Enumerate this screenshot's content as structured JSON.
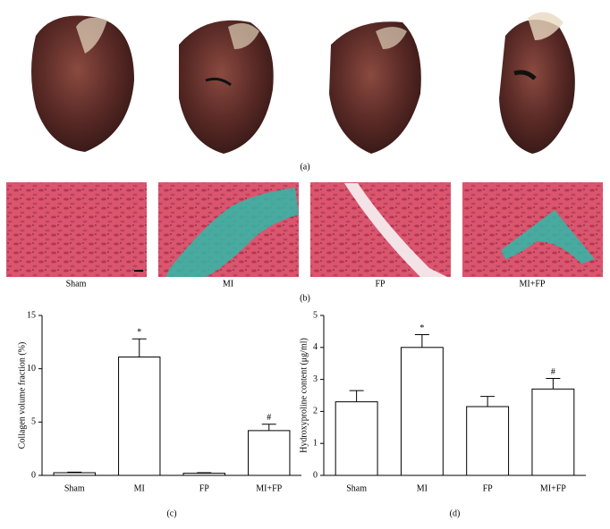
{
  "panel_a": {
    "caption": "(a)"
  },
  "panel_b": {
    "caption": "(b)",
    "labels": [
      "Sham",
      "MI",
      "FP",
      "MI+FP"
    ]
  },
  "chart_data": [
    {
      "type": "bar",
      "caption": "(c)",
      "y_label": "Collagen volume fraction (%)",
      "categories": [
        "Sham",
        "MI",
        "FP",
        "MI+FP"
      ],
      "values": [
        0.25,
        11.1,
        0.2,
        4.2
      ],
      "errors": [
        0.05,
        1.7,
        0.05,
        0.6
      ],
      "color": "#ffffff",
      "ylim": [
        0,
        15
      ],
      "yticks": [
        0,
        5,
        10,
        15
      ],
      "annotations": [
        {
          "x": "MI",
          "text": "*"
        },
        {
          "x": "MI+FP",
          "text": "#"
        }
      ]
    },
    {
      "type": "bar",
      "caption": "(d)",
      "y_label": "Hydroxyproline content (μg/ml)",
      "categories": [
        "Sham",
        "MI",
        "FP",
        "MI+FP"
      ],
      "values": [
        2.3,
        4.0,
        2.15,
        2.7
      ],
      "errors": [
        0.35,
        0.4,
        0.32,
        0.33
      ],
      "color": "#ffffff",
      "ylim": [
        0,
        5
      ],
      "yticks": [
        0,
        1,
        2,
        3,
        4,
        5
      ],
      "annotations": [
        {
          "x": "MI",
          "text": "*"
        },
        {
          "x": "MI+FP",
          "text": "#"
        }
      ]
    }
  ]
}
